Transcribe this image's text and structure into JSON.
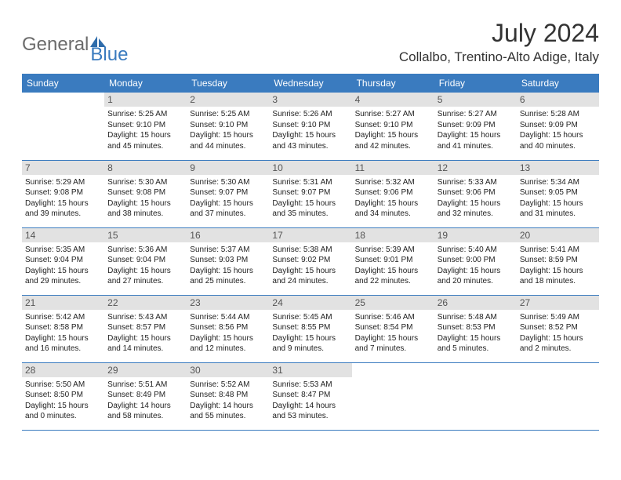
{
  "brand": {
    "part1": "General",
    "part2": "Blue"
  },
  "title": "July 2024",
  "location": "Collalbo, Trentino-Alto Adige, Italy",
  "colors": {
    "header_bg": "#3a7bbf",
    "header_text": "#ffffff",
    "daynum_bg": "#e2e2e2",
    "border": "#3a7bbf",
    "logo_gray": "#6b6b6b",
    "logo_blue": "#3a7bbf"
  },
  "weekdays": [
    "Sunday",
    "Monday",
    "Tuesday",
    "Wednesday",
    "Thursday",
    "Friday",
    "Saturday"
  ],
  "weeks": [
    [
      null,
      {
        "n": "1",
        "sr": "5:25 AM",
        "ss": "9:10 PM",
        "dl": "15 hours and 45 minutes."
      },
      {
        "n": "2",
        "sr": "5:25 AM",
        "ss": "9:10 PM",
        "dl": "15 hours and 44 minutes."
      },
      {
        "n": "3",
        "sr": "5:26 AM",
        "ss": "9:10 PM",
        "dl": "15 hours and 43 minutes."
      },
      {
        "n": "4",
        "sr": "5:27 AM",
        "ss": "9:10 PM",
        "dl": "15 hours and 42 minutes."
      },
      {
        "n": "5",
        "sr": "5:27 AM",
        "ss": "9:09 PM",
        "dl": "15 hours and 41 minutes."
      },
      {
        "n": "6",
        "sr": "5:28 AM",
        "ss": "9:09 PM",
        "dl": "15 hours and 40 minutes."
      }
    ],
    [
      {
        "n": "7",
        "sr": "5:29 AM",
        "ss": "9:08 PM",
        "dl": "15 hours and 39 minutes."
      },
      {
        "n": "8",
        "sr": "5:30 AM",
        "ss": "9:08 PM",
        "dl": "15 hours and 38 minutes."
      },
      {
        "n": "9",
        "sr": "5:30 AM",
        "ss": "9:07 PM",
        "dl": "15 hours and 37 minutes."
      },
      {
        "n": "10",
        "sr": "5:31 AM",
        "ss": "9:07 PM",
        "dl": "15 hours and 35 minutes."
      },
      {
        "n": "11",
        "sr": "5:32 AM",
        "ss": "9:06 PM",
        "dl": "15 hours and 34 minutes."
      },
      {
        "n": "12",
        "sr": "5:33 AM",
        "ss": "9:06 PM",
        "dl": "15 hours and 32 minutes."
      },
      {
        "n": "13",
        "sr": "5:34 AM",
        "ss": "9:05 PM",
        "dl": "15 hours and 31 minutes."
      }
    ],
    [
      {
        "n": "14",
        "sr": "5:35 AM",
        "ss": "9:04 PM",
        "dl": "15 hours and 29 minutes."
      },
      {
        "n": "15",
        "sr": "5:36 AM",
        "ss": "9:04 PM",
        "dl": "15 hours and 27 minutes."
      },
      {
        "n": "16",
        "sr": "5:37 AM",
        "ss": "9:03 PM",
        "dl": "15 hours and 25 minutes."
      },
      {
        "n": "17",
        "sr": "5:38 AM",
        "ss": "9:02 PM",
        "dl": "15 hours and 24 minutes."
      },
      {
        "n": "18",
        "sr": "5:39 AM",
        "ss": "9:01 PM",
        "dl": "15 hours and 22 minutes."
      },
      {
        "n": "19",
        "sr": "5:40 AM",
        "ss": "9:00 PM",
        "dl": "15 hours and 20 minutes."
      },
      {
        "n": "20",
        "sr": "5:41 AM",
        "ss": "8:59 PM",
        "dl": "15 hours and 18 minutes."
      }
    ],
    [
      {
        "n": "21",
        "sr": "5:42 AM",
        "ss": "8:58 PM",
        "dl": "15 hours and 16 minutes."
      },
      {
        "n": "22",
        "sr": "5:43 AM",
        "ss": "8:57 PM",
        "dl": "15 hours and 14 minutes."
      },
      {
        "n": "23",
        "sr": "5:44 AM",
        "ss": "8:56 PM",
        "dl": "15 hours and 12 minutes."
      },
      {
        "n": "24",
        "sr": "5:45 AM",
        "ss": "8:55 PM",
        "dl": "15 hours and 9 minutes."
      },
      {
        "n": "25",
        "sr": "5:46 AM",
        "ss": "8:54 PM",
        "dl": "15 hours and 7 minutes."
      },
      {
        "n": "26",
        "sr": "5:48 AM",
        "ss": "8:53 PM",
        "dl": "15 hours and 5 minutes."
      },
      {
        "n": "27",
        "sr": "5:49 AM",
        "ss": "8:52 PM",
        "dl": "15 hours and 2 minutes."
      }
    ],
    [
      {
        "n": "28",
        "sr": "5:50 AM",
        "ss": "8:50 PM",
        "dl": "15 hours and 0 minutes."
      },
      {
        "n": "29",
        "sr": "5:51 AM",
        "ss": "8:49 PM",
        "dl": "14 hours and 58 minutes."
      },
      {
        "n": "30",
        "sr": "5:52 AM",
        "ss": "8:48 PM",
        "dl": "14 hours and 55 minutes."
      },
      {
        "n": "31",
        "sr": "5:53 AM",
        "ss": "8:47 PM",
        "dl": "14 hours and 53 minutes."
      },
      null,
      null,
      null
    ]
  ],
  "labels": {
    "sunrise": "Sunrise:",
    "sunset": "Sunset:",
    "daylight": "Daylight:"
  }
}
